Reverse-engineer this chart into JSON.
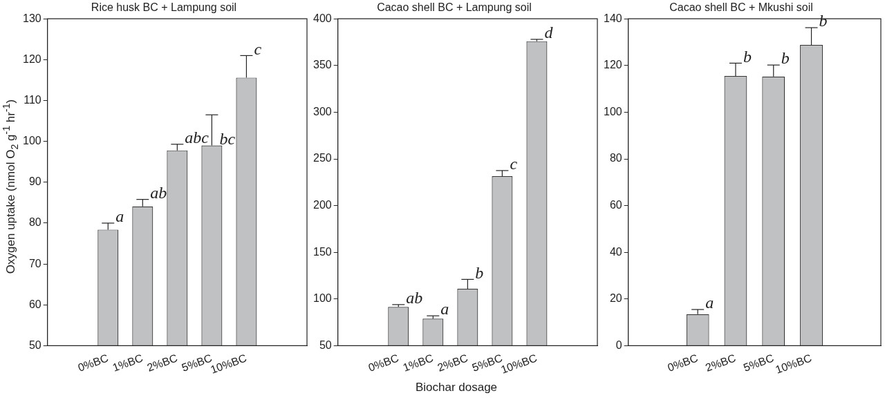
{
  "chart_data": [
    {
      "type": "bar",
      "title": "Rice husk BC + Lampung soil",
      "ylabel": "Oxygen uptake (nmol O$_{2}$ g$^{-1}$ hr$^{-1}$)",
      "categories": [
        "0%BC",
        "1%BC",
        "2%BC",
        "5%BC",
        "10%BC"
      ],
      "values": [
        78.4,
        84.1,
        97.8,
        99.0,
        115.6
      ],
      "errors": [
        [
          78.4,
          80.0
        ],
        [
          84.1,
          85.8
        ],
        [
          97.8,
          99.3
        ],
        [
          99.0,
          106.5
        ],
        [
          115.6,
          121.0
        ]
      ],
      "color": "#c0c1c3",
      "ylim": [
        50,
        130
      ],
      "yticks": [
        50,
        60,
        70,
        80,
        90,
        100,
        110,
        120,
        130
      ],
      "annotations": [
        {
          "text": "a",
          "x": "0%BC",
          "y": 80.0
        },
        {
          "text": "ab",
          "x": "1%BC",
          "y": 85.8
        },
        {
          "text": "abc",
          "x": "2%BC",
          "y": 99.3
        },
        {
          "text": "bc",
          "x": "5%BC",
          "y": 99.0
        },
        {
          "text": "c",
          "x": "10%BC",
          "y": 121.0
        }
      ]
    },
    {
      "type": "bar",
      "title": "Cacao shell BC + Lampung soil",
      "xlabel": "Biochar dosage",
      "categories": [
        "0%BC",
        "1%BC",
        "2%BC",
        "5%BC",
        "10%BC"
      ],
      "values": [
        91.5,
        79,
        111,
        231.5,
        376
      ],
      "errors": [
        [
          91.5,
          94
        ],
        [
          79,
          82
        ],
        [
          111,
          121
        ],
        [
          231.5,
          237.5
        ],
        [
          376,
          378
        ]
      ],
      "color": "#c0c1c3",
      "ylim": [
        50,
        400
      ],
      "yticks": [
        50,
        100,
        150,
        200,
        250,
        300,
        350,
        400
      ],
      "annotations": [
        {
          "text": "ab",
          "x": "0%BC",
          "y": 94
        },
        {
          "text": "a",
          "x": "1%BC",
          "y": 82
        },
        {
          "text": "b",
          "x": "2%BC",
          "y": 121
        },
        {
          "text": "c",
          "x": "5%BC",
          "y": 237.5
        },
        {
          "text": "d",
          "x": "10%BC",
          "y": 378
        }
      ]
    },
    {
      "type": "bar",
      "title": "Cacao shell BC + Mkushi soil",
      "categories": [
        "0%BC",
        "2%BC",
        "5%BC",
        "10%BC"
      ],
      "values": [
        13.5,
        115.5,
        115.3,
        128.8
      ],
      "errors": [
        [
          13.5,
          15.5
        ],
        [
          115.5,
          121
        ],
        [
          115.3,
          120.2
        ],
        [
          128.8,
          136.2
        ]
      ],
      "color": "#c0c1c3",
      "ylim": [
        0,
        140
      ],
      "yticks": [
        0,
        20,
        40,
        60,
        80,
        100,
        120,
        140
      ],
      "annotations": [
        {
          "text": "a",
          "x": "0%BC",
          "y": 15.5
        },
        {
          "text": "b",
          "x": "2%BC",
          "y": 121
        },
        {
          "text": "b",
          "x": "5%BC",
          "y": 120.2
        },
        {
          "text": "b",
          "x": "10%BC",
          "y": 136.2
        }
      ]
    }
  ]
}
